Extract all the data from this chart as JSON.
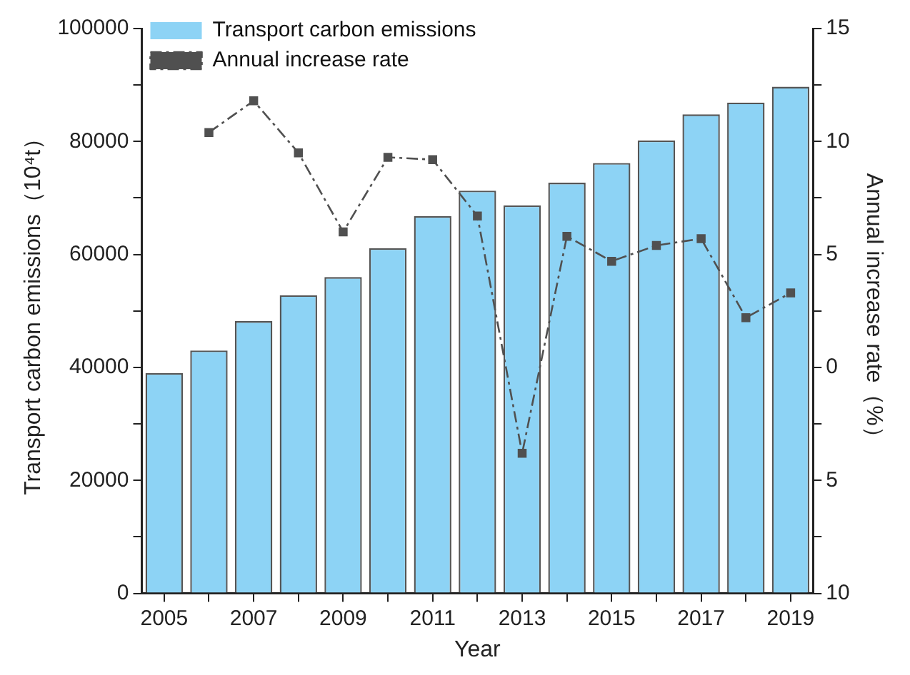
{
  "chart_data": {
    "type": "bar",
    "xlabel": "Year",
    "ylabel": "Transport carbon emissions（10⁴t）",
    "y2label": "Annual increase rate（%）",
    "categories": [
      "2005",
      null,
      "2007",
      null,
      "2009",
      null,
      "2011",
      null,
      "2013",
      null,
      "2015",
      null,
      "2017",
      null,
      "2019"
    ],
    "series": [
      {
        "name": "Transport carbon emissions",
        "color": "#8dd3f5",
        "values": [
          39000,
          43000,
          48200,
          52800,
          56000,
          61100,
          66800,
          71300,
          68700,
          72700,
          76200,
          80200,
          84800,
          86900,
          89700
        ]
      },
      {
        "name": "Annual increase rate",
        "type": "line",
        "axis": "y2",
        "color": "#505050",
        "marker": "square",
        "line_style": "dashed",
        "values": [
          null,
          10.4,
          11.8,
          9.5,
          6.0,
          9.3,
          9.2,
          6.7,
          -3.8,
          5.8,
          4.7,
          5.4,
          5.7,
          2.2,
          3.3
        ]
      }
    ],
    "ylim": [
      0,
      100000
    ],
    "yticks": [
      0,
      {
        "value": 10000,
        "label": null
      },
      20000,
      {
        "value": 30000,
        "label": null
      },
      40000,
      {
        "value": 50000,
        "label": null
      },
      60000,
      {
        "value": 70000,
        "label": null
      },
      80000,
      {
        "value": 90000,
        "label": null
      },
      100000
    ],
    "y2lim": [
      -10,
      15
    ],
    "y2ticks": [
      {
        "value": -10,
        "label": "10"
      },
      {
        "value": -7.5,
        "label": null
      },
      {
        "value": -5,
        "label": "5"
      },
      {
        "value": -2.5,
        "label": null
      },
      0,
      {
        "value": 2.5,
        "label": null
      },
      5,
      {
        "value": 7.5,
        "label": null
      },
      10,
      {
        "value": 12.5,
        "label": null
      },
      15
    ],
    "grid": false,
    "legend": "top left"
  }
}
